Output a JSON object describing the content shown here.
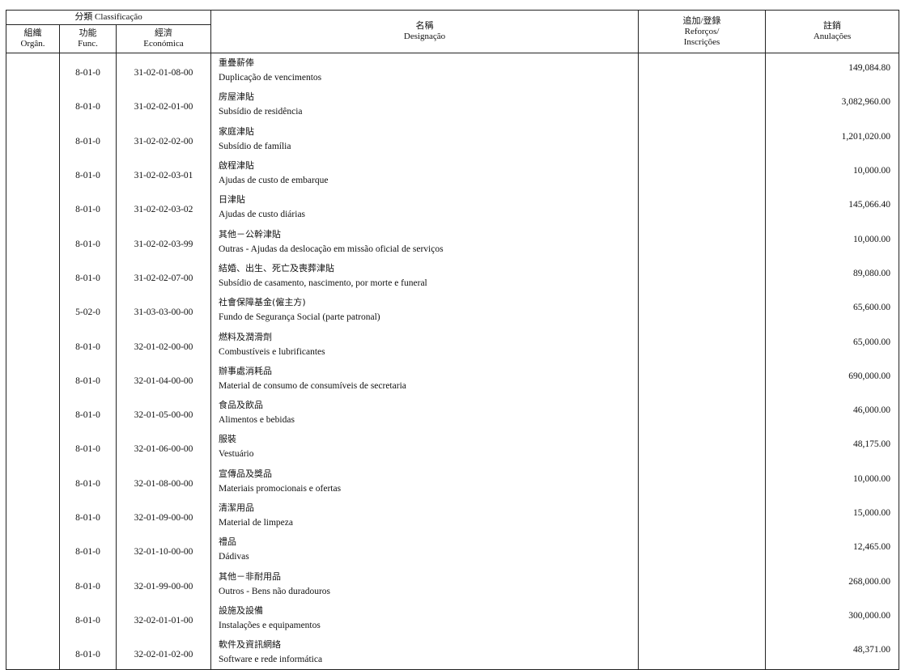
{
  "header": {
    "classification": "分類 Classificação",
    "organ": {
      "zh": "組織",
      "pt": "Orgân."
    },
    "func": {
      "zh": "功能",
      "pt": "Func."
    },
    "economica": {
      "zh": "經濟",
      "pt": "Económica"
    },
    "designacao": {
      "zh": "名稱",
      "pt": "Designação"
    },
    "reforcos": {
      "zh": "追加/登錄",
      "pt1": "Reforços/",
      "pt2": "Inscrições"
    },
    "anulacoes": {
      "zh": "註銷",
      "pt": "Anulações"
    }
  },
  "rows": [
    {
      "organ": "",
      "func": "8-01-0",
      "econ": "31-02-01-08-00",
      "zh": "重疊薪俸",
      "pt": "Duplicação de vencimentos",
      "reforcos": "",
      "anulacoes": "149,084.80"
    },
    {
      "organ": "",
      "func": "8-01-0",
      "econ": "31-02-02-01-00",
      "zh": "房屋津貼",
      "pt": "Subsídio de residência",
      "reforcos": "",
      "anulacoes": "3,082,960.00"
    },
    {
      "organ": "",
      "func": "8-01-0",
      "econ": "31-02-02-02-00",
      "zh": "家庭津貼",
      "pt": "Subsídio de família",
      "reforcos": "",
      "anulacoes": "1,201,020.00"
    },
    {
      "organ": "",
      "func": "8-01-0",
      "econ": "31-02-02-03-01",
      "zh": "啟程津貼",
      "pt": "Ajudas de custo de embarque",
      "reforcos": "",
      "anulacoes": "10,000.00"
    },
    {
      "organ": "",
      "func": "8-01-0",
      "econ": "31-02-02-03-02",
      "zh": "日津貼",
      "pt": "Ajudas de custo diárias",
      "reforcos": "",
      "anulacoes": "145,066.40"
    },
    {
      "organ": "",
      "func": "8-01-0",
      "econ": "31-02-02-03-99",
      "zh": "其他－公幹津貼",
      "pt": "Outras - Ajudas da deslocação em missão oficial de serviços",
      "reforcos": "",
      "anulacoes": "10,000.00"
    },
    {
      "organ": "",
      "func": "8-01-0",
      "econ": "31-02-02-07-00",
      "zh": "結婚、出生、死亡及喪葬津貼",
      "pt": "Subsídio de casamento, nascimento, por morte e funeral",
      "reforcos": "",
      "anulacoes": "89,080.00"
    },
    {
      "organ": "",
      "func": "5-02-0",
      "econ": "31-03-03-00-00",
      "zh": "社會保障基金(僱主方)",
      "pt": "Fundo de Segurança Social (parte patronal)",
      "reforcos": "",
      "anulacoes": "65,600.00"
    },
    {
      "organ": "",
      "func": "8-01-0",
      "econ": "32-01-02-00-00",
      "zh": "燃料及潤滑劑",
      "pt": "Combustíveis e lubrificantes",
      "reforcos": "",
      "anulacoes": "65,000.00"
    },
    {
      "organ": "",
      "func": "8-01-0",
      "econ": "32-01-04-00-00",
      "zh": "辦事處消耗品",
      "pt": "Material de consumo de consumíveis de secretaria",
      "reforcos": "",
      "anulacoes": "690,000.00"
    },
    {
      "organ": "",
      "func": "8-01-0",
      "econ": "32-01-05-00-00",
      "zh": "食品及飲品",
      "pt": "Alimentos e bebidas",
      "reforcos": "",
      "anulacoes": "46,000.00"
    },
    {
      "organ": "",
      "func": "8-01-0",
      "econ": "32-01-06-00-00",
      "zh": "服裝",
      "pt": "Vestuário",
      "reforcos": "",
      "anulacoes": "48,175.00"
    },
    {
      "organ": "",
      "func": "8-01-0",
      "econ": "32-01-08-00-00",
      "zh": "宣傳品及獎品",
      "pt": "Materiais promocionais e ofertas",
      "reforcos": "",
      "anulacoes": "10,000.00"
    },
    {
      "organ": "",
      "func": "8-01-0",
      "econ": "32-01-09-00-00",
      "zh": "清潔用品",
      "pt": "Material de limpeza",
      "reforcos": "",
      "anulacoes": "15,000.00"
    },
    {
      "organ": "",
      "func": "8-01-0",
      "econ": "32-01-10-00-00",
      "zh": "禮品",
      "pt": "Dádivas",
      "reforcos": "",
      "anulacoes": "12,465.00"
    },
    {
      "organ": "",
      "func": "8-01-0",
      "econ": "32-01-99-00-00",
      "zh": "其他－非耐用品",
      "pt": "Outros - Bens não duradouros",
      "reforcos": "",
      "anulacoes": "268,000.00"
    },
    {
      "organ": "",
      "func": "8-01-0",
      "econ": "32-02-01-01-00",
      "zh": "設施及設備",
      "pt": "Instalações e equipamentos",
      "reforcos": "",
      "anulacoes": "300,000.00"
    },
    {
      "organ": "",
      "func": "8-01-0",
      "econ": "32-02-01-02-00",
      "zh": "軟件及資訊網絡",
      "pt": "Software e rede informática",
      "reforcos": "",
      "anulacoes": "48,371.00"
    }
  ]
}
